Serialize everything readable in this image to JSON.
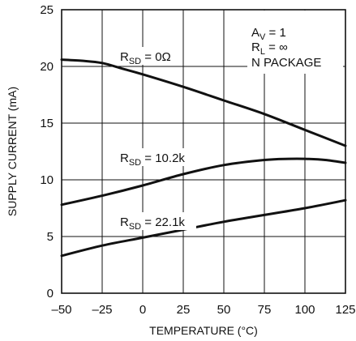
{
  "chart_data": {
    "type": "line",
    "xlabel": "TEMPERATURE (°C)",
    "ylabel": "SUPPLY CURRENT (mA)",
    "xlim": [
      -50,
      125
    ],
    "ylim": [
      0,
      25
    ],
    "x_ticks": [
      "–50",
      "–25",
      "0",
      "25",
      "50",
      "75",
      "100",
      "125"
    ],
    "y_ticks": [
      "0",
      "5",
      "10",
      "15",
      "20",
      "25"
    ],
    "grid": true,
    "conditions": {
      "av": {
        "main": "A",
        "sub": "V",
        "rest": " = 1"
      },
      "rl": {
        "main": "R",
        "sub": "L",
        "rest": " = ∞"
      },
      "package": "N PACKAGE"
    },
    "series": [
      {
        "label": {
          "main": "R",
          "sub": "SD",
          "rest": " = 0Ω"
        },
        "points": [
          [
            -50,
            20.6
          ],
          [
            -37.5,
            20.5
          ],
          [
            -25,
            20.3
          ],
          [
            -12.5,
            19.8
          ],
          [
            0,
            19.3
          ],
          [
            25,
            18.2
          ],
          [
            50,
            17.0
          ],
          [
            75,
            15.8
          ],
          [
            100,
            14.4
          ],
          [
            125,
            13.0
          ]
        ]
      },
      {
        "label": {
          "main": "R",
          "sub": "SD",
          "rest": " = 10.2k"
        },
        "points": [
          [
            -50,
            7.8
          ],
          [
            -25,
            8.6
          ],
          [
            0,
            9.5
          ],
          [
            25,
            10.5
          ],
          [
            50,
            11.3
          ],
          [
            75,
            11.75
          ],
          [
            90,
            11.85
          ],
          [
            100,
            11.85
          ],
          [
            112.5,
            11.75
          ],
          [
            125,
            11.5
          ]
        ]
      },
      {
        "label": {
          "main": "R",
          "sub": "SD",
          "rest": " = 22.1k"
        },
        "points": [
          [
            -50,
            3.3
          ],
          [
            -25,
            4.2
          ],
          [
            0,
            4.9
          ],
          [
            25,
            5.6
          ],
          [
            50,
            6.3
          ],
          [
            75,
            6.9
          ],
          [
            100,
            7.5
          ],
          [
            125,
            8.2
          ]
        ]
      }
    ]
  }
}
